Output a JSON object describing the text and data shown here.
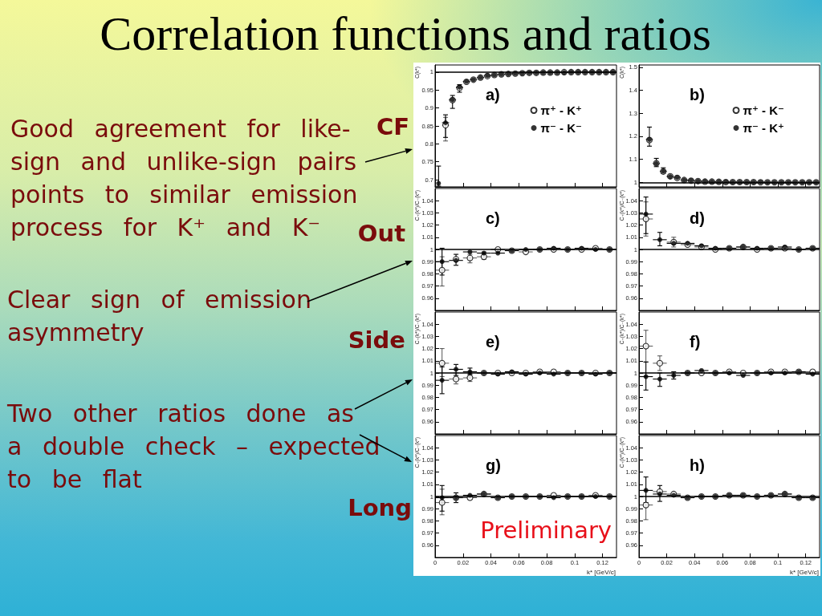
{
  "chart_data": [
    {
      "type": "other",
      "title": "Correlation functions and ratios",
      "annotations": [
        "Good agreement for like-sign and unlike-sign pairs points to similar emission process for K⁺ and K⁻",
        "CF",
        "Out",
        "Clear sign of emission asymmetry",
        "Side",
        "Two other ratios done as a double check – expected to be flat",
        "Long"
      ]
    },
    {
      "type": "scatter",
      "ylabel": "C(k*)",
      "x": [
        0.0025,
        0.0075,
        0.0125,
        0.0175,
        0.0225,
        0.0275,
        0.0325,
        0.0375,
        0.0425,
        0.0475,
        0.0525,
        0.0575,
        0.0625,
        0.0675,
        0.0725,
        0.0775,
        0.0825,
        0.0875,
        0.0925,
        0.0975,
        0.1025,
        0.1075,
        0.1125,
        0.1175,
        0.1225,
        0.1275
      ],
      "xlim": [
        0,
        0.13
      ],
      "xticks": [
        0,
        0.02,
        0.04,
        0.06,
        0.08,
        0.1,
        0.12
      ],
      "ylim": [
        0.68,
        1.02
      ],
      "yticks": [
        0.7,
        0.75,
        0.8,
        0.85,
        0.9,
        0.95,
        1
      ],
      "tick_labels": "y",
      "marker": "circle",
      "legend": "top right",
      "ref_lines": [
        {
          "axis": "y",
          "value": 1
        }
      ],
      "annotations": [
        "a)"
      ],
      "series": [
        {
          "name": "π⁺ - K⁺",
          "color": "#000000",
          "values": [
            null,
            0.852,
            0.922,
            0.956,
            0.973,
            0.979,
            0.985,
            0.989,
            0.992,
            0.994,
            0.995,
            0.996,
            0.997,
            0.998,
            0.998,
            0.999,
            0.999,
            0.999,
            1,
            1,
            1,
            1,
            1,
            1,
            1,
            1
          ],
          "errors": [
            null,
            [
              0.808,
              0.874
            ],
            null,
            null,
            null,
            null,
            null,
            null,
            null,
            null,
            null,
            null,
            null,
            null,
            null,
            null,
            null,
            null,
            null,
            null,
            null,
            null,
            null,
            null,
            null,
            null
          ],
          "xerrors": [
            null,
            0.0025,
            0.0025,
            0.0025,
            0.0025,
            0.0025,
            0.0025,
            0.0025,
            0.0025,
            0.0025,
            0.0025,
            0.0025,
            0.0025,
            0.0025,
            0.0025,
            0.0025,
            0.0025,
            0.0025,
            0.0025,
            0.0025,
            0.0025,
            0.0025,
            0.0025,
            0.0025,
            0.0025,
            0.0025
          ]
        },
        {
          "name": "π⁻ - K⁻",
          "color": "#000000",
          "values": [
            0.69,
            0.859,
            0.923,
            0.958,
            0.974,
            0.979,
            0.985,
            0.99,
            0.992,
            0.994,
            0.995,
            0.996,
            0.997,
            0.998,
            0.998,
            0.999,
            0.999,
            0.999,
            0.999,
            1,
            1,
            1,
            1,
            1,
            1,
            1
          ],
          "errors": [
            [
              0.682,
              0.738
            ],
            [
              0.818,
              0.881
            ],
            [
              0.899,
              0.935
            ],
            [
              0.944,
              0.965
            ],
            null,
            null,
            null,
            null,
            null,
            null,
            null,
            null,
            null,
            null,
            null,
            null,
            null,
            null,
            null,
            null,
            null,
            null,
            null,
            null,
            null,
            null
          ],
          "xerrors": [
            null,
            0.0025,
            0.0025,
            0.0025,
            0.0025,
            0.0025,
            0.0025,
            0.0025,
            0.0025,
            0.0025,
            0.0025,
            0.0025,
            0.0025,
            0.0025,
            0.0025,
            0.0025,
            0.0025,
            0.0025,
            0.0025,
            0.0025,
            0.0025,
            0.0025,
            0.0025,
            0.0025,
            0.0025,
            0.0025
          ]
        }
      ]
    },
    {
      "type": "scatter",
      "ylabel": "C(k*)",
      "x": [
        0.0075,
        0.0125,
        0.0175,
        0.0225,
        0.0275,
        0.0325,
        0.0375,
        0.0425,
        0.0475,
        0.0525,
        0.0575,
        0.0625,
        0.0675,
        0.0725,
        0.0775,
        0.0825,
        0.0875,
        0.0925,
        0.0975,
        0.1025,
        0.1075,
        0.1125,
        0.1175,
        0.1225,
        0.1275
      ],
      "xlim": [
        0,
        0.13
      ],
      "xticks": [
        0,
        0.02,
        0.04,
        0.06,
        0.08,
        0.1,
        0.12
      ],
      "ylim": [
        0.98,
        1.51
      ],
      "yticks": [
        1,
        1.1,
        1.2,
        1.3,
        1.4,
        1.5
      ],
      "tick_labels": "y",
      "marker": "circle",
      "legend": "top right",
      "ref_lines": [
        {
          "axis": "y",
          "value": 1
        }
      ],
      "annotations": [
        "b)"
      ],
      "series": [
        {
          "name": "π⁺ - K⁻",
          "color": "#000000",
          "values": [
            1.184,
            1.083,
            1.047,
            1.026,
            1.019,
            1.01,
            1.007,
            1.005,
            1.003,
            1.003,
            1.002,
            1.001,
            1.001,
            1.001,
            1.001,
            1.001,
            1,
            1,
            1,
            1,
            1,
            1,
            1,
            1,
            1
          ],
          "xerrors": [
            null,
            null,
            null,
            0.0025,
            0.0025,
            0.0025,
            0.0025,
            0.0025,
            0.0025,
            0.0025,
            0.0025,
            0.0025,
            0.0025,
            0.0025,
            0.0025,
            0.0025,
            0.0025,
            0.0025,
            0.0025,
            0.0025,
            0.0025,
            0.0025,
            0.0025,
            0.0025,
            0.0025
          ]
        },
        {
          "name": "π⁻ - K⁺",
          "color": "#000000",
          "values": [
            1.186,
            1.082,
            1.048,
            1.025,
            1.021,
            1.01,
            1.008,
            1.005,
            1.004,
            1.003,
            1.002,
            1.002,
            1.001,
            1.001,
            1.001,
            1.001,
            1.001,
            1,
            1,
            1,
            1,
            1,
            1,
            1,
            1
          ],
          "errors": [
            [
              1.157,
              1.24
            ],
            [
              1.068,
              1.104
            ],
            [
              1.04,
              1.063
            ],
            null,
            null,
            null,
            null,
            null,
            null,
            null,
            null,
            null,
            null,
            null,
            null,
            null,
            null,
            null,
            null,
            null,
            null,
            null,
            null,
            null,
            null
          ],
          "xerrors": [
            0.0025,
            0.0025,
            0.0025,
            0.0025,
            0.0025,
            0.0025,
            0.0025,
            0.0025,
            0.0025,
            0.0025,
            0.0025,
            0.0025,
            0.0025,
            0.0025,
            0.0025,
            0.0025,
            0.0025,
            0.0025,
            0.0025,
            0.0025,
            0.0025,
            0.0025,
            0.0025,
            0.0025,
            0.0025
          ]
        }
      ]
    },
    {
      "type": "scatter",
      "ylabel": "C₊(k*)/C₋(k*)",
      "x": [
        0.005,
        0.015,
        0.025,
        0.035,
        0.045,
        0.055,
        0.065,
        0.075,
        0.085,
        0.095,
        0.105,
        0.115,
        0.125
      ],
      "xlim": [
        0,
        0.13
      ],
      "xticks": [
        0,
        0.02,
        0.04,
        0.06,
        0.08,
        0.1,
        0.12
      ],
      "ylim": [
        0.95,
        1.05
      ],
      "yticks": [
        0.96,
        0.97,
        0.98,
        0.99,
        1,
        1.01,
        1.02,
        1.03,
        1.04
      ],
      "tick_labels": "y",
      "marker": "circle",
      "ref_lines": [
        {
          "axis": "y",
          "value": 1
        }
      ],
      "annotations": [
        "c)"
      ],
      "series": [
        {
          "color": "#000000",
          "values": [
            0.983,
            0.992,
            0.993,
            0.994,
            1,
            0.999,
            0.998,
            1,
            1,
            1,
            1,
            1.001,
            1
          ],
          "errors": [
            [
              0.97,
              0.994
            ],
            null,
            [
              0.989,
              0.996
            ],
            [
              0.992,
              0.998
            ],
            null,
            null,
            null,
            null,
            null,
            null,
            null,
            null,
            null
          ],
          "xerrors": [
            0.005,
            null,
            0.005,
            0.005,
            0.005,
            0.005,
            0.005,
            0.005,
            0.005,
            0.005,
            0.005,
            0.005,
            0.005
          ]
        },
        {
          "color": "#000000",
          "values": [
            0.99,
            0.991,
            0.998,
            0.997,
            0.997,
            0.999,
            1,
            1,
            1.001,
            1,
            1.001,
            1,
            1
          ],
          "errors": [
            [
              0.979,
              1.001
            ],
            [
              0.987,
              0.996
            ],
            null,
            null,
            null,
            null,
            null,
            null,
            null,
            null,
            null,
            null,
            null
          ],
          "xerrors": [
            0.005,
            0.005,
            0.005,
            0.005,
            0.005,
            0.005,
            0.005,
            0.005,
            0.005,
            0.005,
            0.005,
            0.005,
            0.005
          ]
        }
      ]
    },
    {
      "type": "scatter",
      "ylabel": "C₊(k*)/C₋(k*)",
      "x": [
        0.005,
        0.015,
        0.025,
        0.035,
        0.045,
        0.055,
        0.065,
        0.075,
        0.085,
        0.095,
        0.105,
        0.115,
        0.125
      ],
      "xlim": [
        0,
        0.13
      ],
      "xticks": [
        0,
        0.02,
        0.04,
        0.06,
        0.08,
        0.1,
        0.12
      ],
      "ylim": [
        0.95,
        1.05
      ],
      "yticks": [
        0.96,
        0.97,
        0.98,
        0.99,
        1,
        1.01,
        1.02,
        1.03,
        1.04
      ],
      "tick_labels": "y",
      "marker": "circle",
      "ref_lines": [
        {
          "axis": "y",
          "value": 1
        }
      ],
      "annotations": [
        "d)"
      ],
      "series": [
        {
          "color": "#000000",
          "values": [
            1.025,
            null,
            1.006,
            1.004,
            1.002,
            1,
            1.001,
            1.002,
            1,
            1.001,
            1.001,
            1,
            1.001
          ],
          "errors": [
            [
              1.011,
              1.039
            ],
            null,
            [
              1.002,
              1.01
            ],
            null,
            null,
            null,
            null,
            null,
            null,
            null,
            null,
            null,
            null
          ],
          "xerrors": [
            0.005,
            null,
            0.005,
            0.005,
            0.005,
            0.005,
            0.005,
            0.005,
            0.005,
            0.005,
            0.005,
            0.005,
            0.005
          ]
        },
        {
          "color": "#000000",
          "values": [
            1.029,
            1.008,
            1.005,
            1.005,
            1.003,
            1.001,
            1.001,
            1.002,
            1.001,
            1.001,
            1.002,
            1,
            1.001
          ],
          "errors": [
            [
              1.013,
              1.043
            ],
            [
              1.003,
              1.014
            ],
            null,
            null,
            null,
            null,
            null,
            null,
            null,
            null,
            null,
            null,
            null
          ],
          "xerrors": [
            0.005,
            0.005,
            0.005,
            0.005,
            0.005,
            0.005,
            0.005,
            0.005,
            0.005,
            0.005,
            0.005,
            0.005,
            0.005
          ]
        }
      ]
    },
    {
      "type": "scatter",
      "ylabel": "C₊(k*)/C₋(k*)",
      "x": [
        0.005,
        0.015,
        0.025,
        0.035,
        0.045,
        0.055,
        0.065,
        0.075,
        0.085,
        0.095,
        0.105,
        0.115,
        0.125
      ],
      "xlim": [
        0,
        0.13
      ],
      "xticks": [
        0,
        0.02,
        0.04,
        0.06,
        0.08,
        0.1,
        0.12
      ],
      "ylim": [
        0.95,
        1.05
      ],
      "yticks": [
        0.96,
        0.97,
        0.98,
        0.99,
        1,
        1.01,
        1.02,
        1.03,
        1.04
      ],
      "tick_labels": "y",
      "marker": "circle",
      "ref_lines": [
        {
          "axis": "y",
          "value": 1
        }
      ],
      "annotations": [
        "e)"
      ],
      "series": [
        {
          "color": "#000000",
          "values": [
            1.008,
            0.995,
            0.996,
            1,
            1,
            1,
            1,
            1.001,
            1.001,
            1,
            1,
            1,
            1
          ],
          "errors": [
            [
              0.997,
              1.02
            ],
            [
              0.991,
              1
            ],
            [
              0.993,
              0.998
            ],
            null,
            null,
            null,
            null,
            null,
            null,
            null,
            null,
            null,
            null
          ],
          "xerrors": [
            0.005,
            0.005,
            0.005,
            0.005,
            0.005,
            0.005,
            0.005,
            0.005,
            0.005,
            0.005,
            0.005,
            0.005,
            0.005
          ]
        },
        {
          "color": "#000000",
          "values": [
            0.994,
            1.003,
            1.001,
            1,
            0.999,
            1.001,
            0.999,
            1,
            0.999,
            1,
            1,
            0.999,
            1
          ],
          "errors": [
            [
              0.983,
              1.005
            ],
            [
              0.998,
              1.007
            ],
            [
              0.999,
              1.004
            ],
            null,
            null,
            null,
            null,
            null,
            null,
            null,
            null,
            null,
            null
          ],
          "xerrors": [
            0.005,
            0.005,
            0.005,
            0.005,
            0.005,
            0.005,
            0.005,
            0.005,
            0.005,
            0.005,
            0.005,
            0.005,
            0.005
          ]
        }
      ]
    },
    {
      "type": "scatter",
      "ylabel": "C₊(k*)/C₋(k*)",
      "x": [
        0.005,
        0.015,
        0.025,
        0.035,
        0.045,
        0.055,
        0.065,
        0.075,
        0.085,
        0.095,
        0.105,
        0.115,
        0.125
      ],
      "xlim": [
        0,
        0.13
      ],
      "xticks": [
        0,
        0.02,
        0.04,
        0.06,
        0.08,
        0.1,
        0.12
      ],
      "ylim": [
        0.95,
        1.05
      ],
      "yticks": [
        0.96,
        0.97,
        0.98,
        0.99,
        1,
        1.01,
        1.02,
        1.03,
        1.04
      ],
      "tick_labels": "y",
      "marker": "circle",
      "ref_lines": [
        {
          "axis": "y",
          "value": 1
        }
      ],
      "annotations": [
        "f)"
      ],
      "series": [
        {
          "color": "#000000",
          "values": [
            1.022,
            1.008,
            null,
            1,
            1,
            1,
            1.001,
            1,
            1,
            1.001,
            1.001,
            1.001,
            1.001
          ],
          "errors": [
            [
              1.009,
              1.035
            ],
            [
              1.002,
              1.014
            ],
            null,
            null,
            null,
            null,
            null,
            null,
            null,
            null,
            null,
            null,
            null
          ],
          "xerrors": [
            0.005,
            0.005,
            null,
            0.005,
            0.005,
            0.005,
            0.005,
            0.005,
            0.005,
            0.005,
            0.005,
            0.005,
            0.005
          ]
        },
        {
          "color": "#000000",
          "values": [
            0.997,
            0.995,
            0.998,
            1,
            1.002,
            1,
            1,
            0.998,
            1,
            1,
            1,
            1.001,
            0.999
          ],
          "errors": [
            [
              0.986,
              1.009
            ],
            [
              0.989,
              1
            ],
            [
              0.995,
              1.001
            ],
            null,
            null,
            null,
            null,
            null,
            null,
            null,
            null,
            null,
            null
          ],
          "xerrors": [
            0.005,
            0.005,
            0.005,
            0.005,
            0.005,
            0.005,
            0.005,
            0.005,
            0.005,
            0.005,
            0.005,
            0.005,
            0.005
          ]
        }
      ]
    },
    {
      "type": "scatter",
      "ylabel": "C₊(k*)/C₋(k*)",
      "xlabel": "k* [GeV/c]",
      "x": [
        0.005,
        0.015,
        0.025,
        0.035,
        0.045,
        0.055,
        0.065,
        0.075,
        0.085,
        0.095,
        0.105,
        0.115,
        0.125
      ],
      "xlim": [
        0,
        0.13
      ],
      "xticks": [
        0,
        0.02,
        0.04,
        0.06,
        0.08,
        0.1,
        0.12
      ],
      "ylim": [
        0.95,
        1.05
      ],
      "yticks": [
        0.96,
        0.97,
        0.98,
        0.99,
        1,
        1.01,
        1.02,
        1.03,
        1.04
      ],
      "marker": "circle",
      "ref_lines": [
        {
          "axis": "y",
          "value": 1
        }
      ],
      "annotations": [
        "g)",
        "Preliminary"
      ],
      "series": [
        {
          "color": "#000000",
          "values": [
            0.995,
            0.999,
            0.999,
            1.002,
            0.999,
            1,
            1,
            1,
            1.001,
            1,
            1,
            1.001,
            1
          ],
          "errors": [
            [
              0.985,
              1.006
            ],
            null,
            null,
            null,
            null,
            null,
            null,
            null,
            null,
            null,
            null,
            null,
            null
          ],
          "xerrors": [
            0.005,
            0.005,
            0.005,
            0.005,
            0.005,
            0.005,
            0.005,
            0.005,
            0.005,
            0.005,
            0.005,
            0.005,
            0.005
          ]
        },
        {
          "color": "#000000",
          "values": [
            0.999,
            0.999,
            1.001,
            1.002,
            0.999,
            1,
            1,
            1,
            0.999,
            1,
            1,
            1,
            1
          ],
          "errors": [
            [
              0.988,
              1.009
            ],
            [
              0.995,
              1.003
            ],
            null,
            null,
            null,
            null,
            null,
            null,
            null,
            null,
            null,
            null,
            null
          ],
          "xerrors": [
            0.005,
            0.005,
            0.005,
            0.005,
            0.005,
            0.005,
            0.005,
            0.005,
            0.005,
            0.005,
            0.005,
            0.005,
            0.005
          ]
        }
      ]
    },
    {
      "type": "scatter",
      "ylabel": "C₊(k*)/C₋(k*)",
      "xlabel": "k* [GeV/c]",
      "x": [
        0.005,
        0.015,
        0.025,
        0.035,
        0.045,
        0.055,
        0.065,
        0.075,
        0.085,
        0.095,
        0.105,
        0.115,
        0.125
      ],
      "xlim": [
        0,
        0.13
      ],
      "xticks": [
        0,
        0.02,
        0.04,
        0.06,
        0.08,
        0.1,
        0.12
      ],
      "ylim": [
        0.95,
        1.05
      ],
      "yticks": [
        0.96,
        0.97,
        0.98,
        0.99,
        1,
        1.01,
        1.02,
        1.03,
        1.04
      ],
      "marker": "circle",
      "ref_lines": [
        {
          "axis": "y",
          "value": 1
        }
      ],
      "annotations": [
        "h)"
      ],
      "series": [
        {
          "color": "#000000",
          "values": [
            0.993,
            1.004,
            1.002,
            0.999,
            1,
            1,
            1.001,
            1.001,
            1,
            1.001,
            1.002,
            0.999,
            0.999
          ],
          "errors": [
            [
              0.981,
              1.005
            ],
            null,
            null,
            null,
            null,
            null,
            null,
            null,
            null,
            null,
            null,
            null,
            null
          ],
          "xerrors": [
            0.005,
            0.005,
            0.005,
            0.005,
            0.005,
            0.005,
            0.005,
            0.005,
            0.005,
            0.005,
            0.005,
            0.005,
            0.005
          ]
        },
        {
          "color": "#000000",
          "values": [
            1.005,
            1.002,
            1.001,
            0.999,
            1,
            1,
            1.001,
            1.001,
            1,
            1.001,
            1.002,
            0.999,
            0.999
          ],
          "errors": [
            [
              0.995,
              1.016
            ],
            [
              0.996,
              1.009
            ],
            null,
            null,
            null,
            null,
            null,
            null,
            null,
            null,
            null,
            null,
            null
          ],
          "xerrors": [
            0.005,
            0.005,
            0.005,
            0.005,
            0.005,
            0.005,
            0.005,
            0.005,
            0.005,
            0.005,
            0.005,
            0.005,
            0.005
          ]
        }
      ]
    }
  ]
}
